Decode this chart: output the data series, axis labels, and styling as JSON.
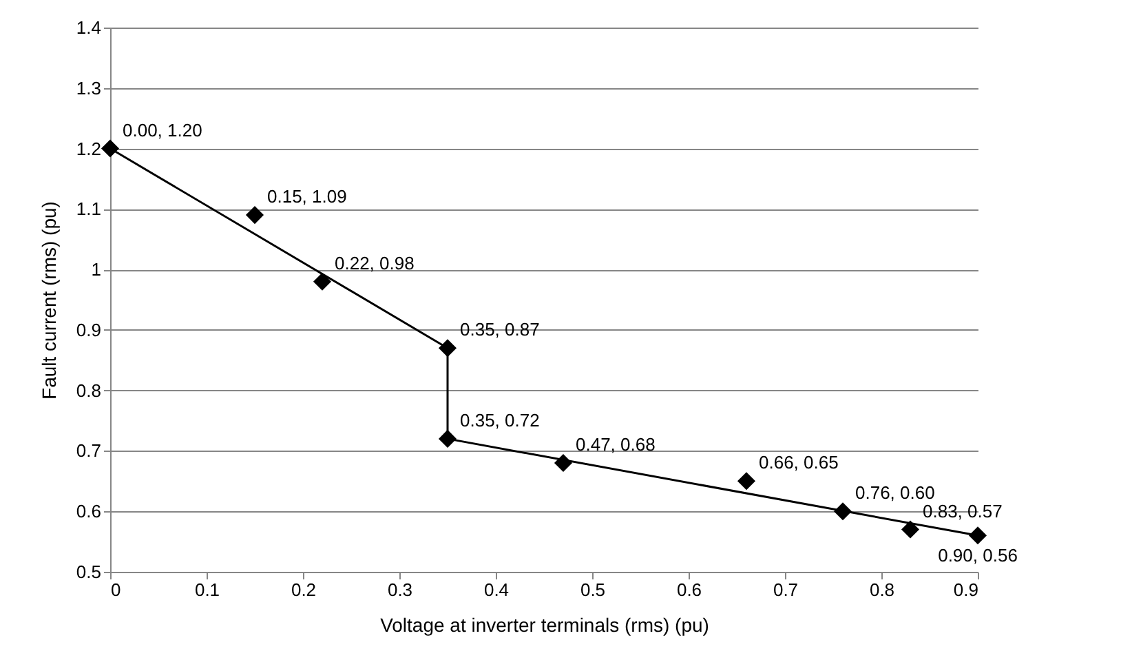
{
  "chart_data": {
    "type": "scatter",
    "xlabel": "Voltage at inverter terminals (rms) (pu)",
    "ylabel": "Fault current (rms) (pu)",
    "xlim": [
      0,
      0.9
    ],
    "xticks": [
      0,
      0.1,
      0.2,
      0.3,
      0.4,
      0.5,
      0.6,
      0.7,
      0.8,
      0.9
    ],
    "ylim": [
      0.5,
      1.4
    ],
    "yticks": [
      0.5,
      0.6,
      0.7,
      0.8,
      0.9,
      1,
      1.1,
      1.2,
      1.3,
      1.4
    ],
    "grid": "y",
    "series": [
      {
        "type": "line",
        "color": "#000000",
        "marker": "none",
        "line_style": "solid",
        "x": [
          0,
          0.35,
          0.35,
          0.9
        ],
        "values": [
          1.2,
          0.87,
          0.72,
          0.56
        ]
      },
      {
        "color": "#000000",
        "marker": "diamond",
        "x": [
          0,
          0.15,
          0.22,
          0.35,
          0.35,
          0.47,
          0.66,
          0.76,
          0.83,
          0.9
        ],
        "values": [
          1.2,
          1.09,
          0.98,
          0.87,
          0.72,
          0.68,
          0.65,
          0.6,
          0.57,
          0.56
        ],
        "value_labels": [
          "0.00, 1.20",
          "0.15, 1.09",
          "0.22, 0.98",
          "0.35, 0.87",
          "0.35, 0.72",
          "0.47, 0.68",
          "0.66, 0.65",
          "0.76, 0.60",
          "0.83, 0.57",
          "0.90, 0.56"
        ]
      }
    ]
  }
}
